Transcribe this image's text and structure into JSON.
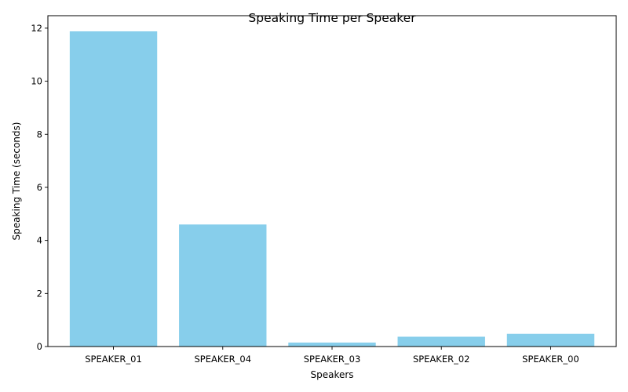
{
  "chart_data": {
    "type": "bar",
    "title": "Speaking Time per Speaker",
    "xlabel": "Speakers",
    "ylabel": "Speaking Time (seconds)",
    "categories": [
      "SPEAKER_01",
      "SPEAKER_04",
      "SPEAKER_03",
      "SPEAKER_02",
      "SPEAKER_00"
    ],
    "values": [
      11.88,
      4.6,
      0.15,
      0.37,
      0.48
    ],
    "ylim": [
      0,
      12.47
    ],
    "yticks": [
      0,
      2,
      4,
      6,
      8,
      10,
      12
    ],
    "grid": false,
    "legend": "none",
    "bar_color": "#87CEEB"
  }
}
